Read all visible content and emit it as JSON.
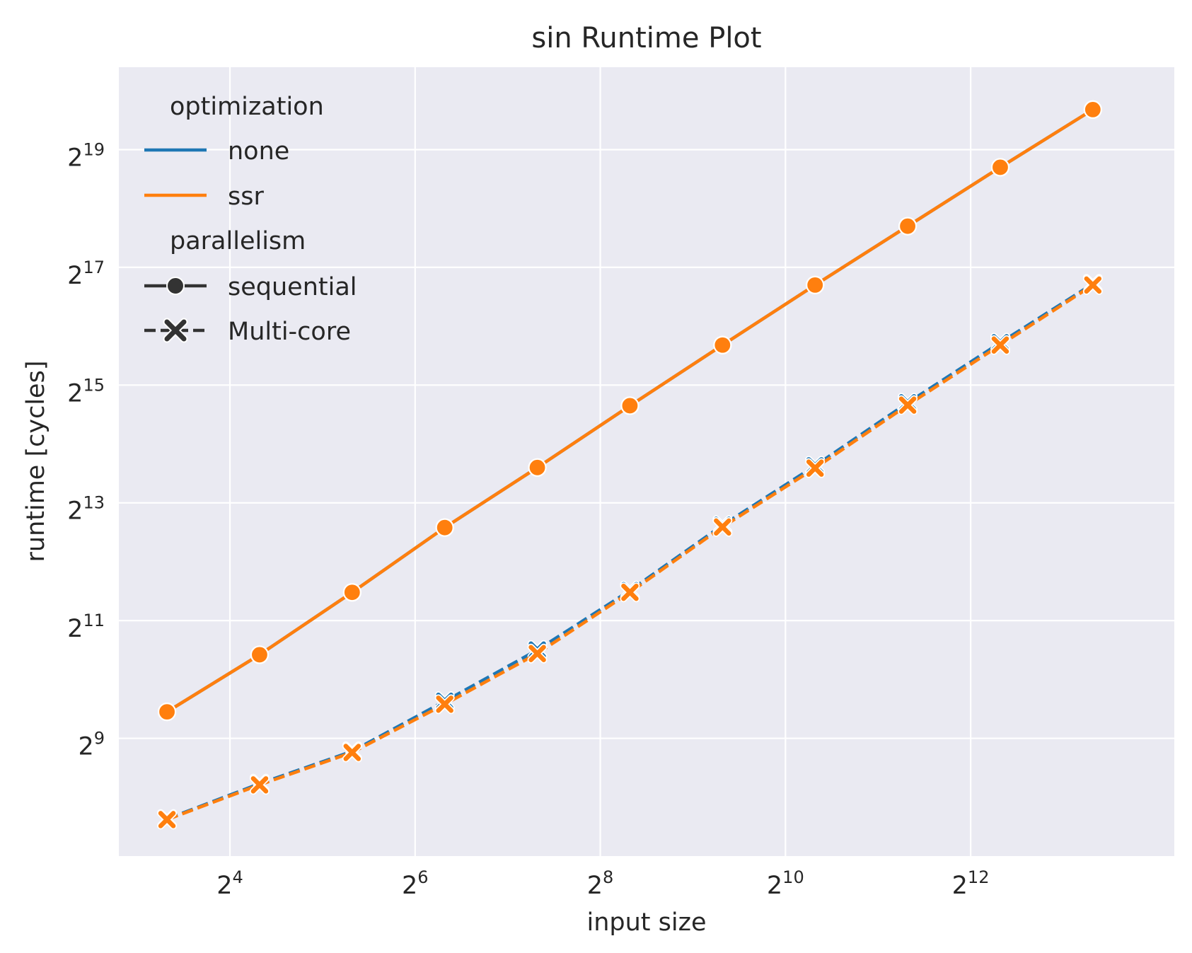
{
  "chart_data": {
    "type": "line",
    "title": "sin Runtime Plot",
    "xlabel": "input size",
    "ylabel": "runtime [cycles]",
    "x_scale": "log2",
    "y_scale": "log2",
    "xlim": [
      2.8,
      14.2
    ],
    "ylim": [
      7.0,
      20.4
    ],
    "x_ticks": [
      {
        "exp": 4,
        "base": "2",
        "sup": "4"
      },
      {
        "exp": 6,
        "base": "2",
        "sup": "6"
      },
      {
        "exp": 8,
        "base": "2",
        "sup": "8"
      },
      {
        "exp": 10,
        "base": "2",
        "sup": "10"
      },
      {
        "exp": 12,
        "base": "2",
        "sup": "12"
      }
    ],
    "y_ticks": [
      {
        "exp": 9,
        "base": "2",
        "sup": "9"
      },
      {
        "exp": 11,
        "base": "2",
        "sup": "11"
      },
      {
        "exp": 13,
        "base": "2",
        "sup": "13"
      },
      {
        "exp": 15,
        "base": "2",
        "sup": "15"
      },
      {
        "exp": 17,
        "base": "2",
        "sup": "17"
      },
      {
        "exp": 19,
        "base": "2",
        "sup": "19"
      }
    ],
    "x_exponents": [
      3.32,
      4.32,
      5.32,
      6.32,
      7.32,
      8.32,
      9.32,
      10.32,
      11.32,
      12.32,
      13.32
    ],
    "grid": true,
    "legend_position": "top-left",
    "legend": {
      "hue_title": "optimization",
      "style_title": "parallelism",
      "hue_items": [
        {
          "label": "none",
          "color": "#1f77b4"
        },
        {
          "label": "ssr",
          "color": "#ff7f0e"
        }
      ],
      "style_items": [
        {
          "label": "sequential",
          "marker": "circle",
          "dash": "solid"
        },
        {
          "label": "Multi-core",
          "marker": "x",
          "dash": "dashed"
        }
      ]
    },
    "series": [
      {
        "optimization": "none",
        "parallelism": "sequential",
        "color": "#1f77b4",
        "marker": "circle",
        "dash": "solid",
        "y_exponents": [
          9.45,
          10.42,
          11.48,
          12.58,
          13.6,
          14.65,
          15.68,
          16.7,
          17.7,
          18.7,
          19.68
        ]
      },
      {
        "optimization": "ssr",
        "parallelism": "sequential",
        "color": "#ff7f0e",
        "marker": "circle",
        "dash": "solid",
        "y_exponents": [
          9.45,
          10.42,
          11.48,
          12.58,
          13.6,
          14.65,
          15.68,
          16.7,
          17.7,
          18.7,
          19.68
        ]
      },
      {
        "optimization": "none",
        "parallelism": "Multi-core",
        "color": "#1f77b4",
        "marker": "x",
        "dash": "dashed",
        "y_exponents": [
          7.63,
          8.23,
          8.78,
          9.63,
          10.5,
          11.51,
          12.62,
          13.63,
          14.7,
          15.72,
          16.72
        ]
      },
      {
        "optimization": "ssr",
        "parallelism": "Multi-core",
        "color": "#ff7f0e",
        "marker": "x",
        "dash": "dashed",
        "y_exponents": [
          7.62,
          8.21,
          8.76,
          9.58,
          10.44,
          11.48,
          12.59,
          13.59,
          14.66,
          15.68,
          16.7
        ]
      }
    ]
  }
}
